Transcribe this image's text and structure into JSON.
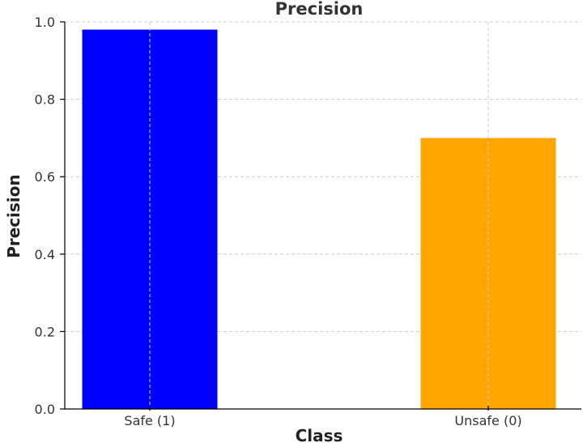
{
  "chart_data": {
    "type": "bar",
    "title": "Precision",
    "xlabel": "Class",
    "ylabel": "Precision",
    "categories": [
      "Safe (1)",
      "Unsafe (0)"
    ],
    "values": [
      0.98,
      0.7
    ],
    "colors": [
      "#0000ff",
      "#ffa500"
    ],
    "ylim": [
      0,
      1.0
    ],
    "yticks": [
      "0.0",
      "0.2",
      "0.4",
      "0.6",
      "0.8",
      "1.0"
    ],
    "grid": true,
    "grid_color": "#cccccc",
    "grid_style": "dashed"
  }
}
